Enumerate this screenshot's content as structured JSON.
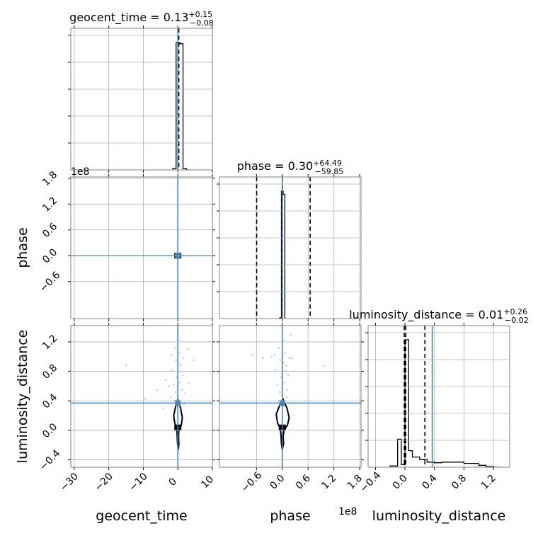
{
  "chart_data": {
    "type": "corner",
    "params": [
      "geocent_time",
      "phase",
      "luminosity_distance"
    ],
    "axis_labels": {
      "geocent_time": "geocent_time",
      "phase": "phase",
      "luminosity_distance": "luminosity_distance"
    },
    "ranges": {
      "geocent_time": [
        -31,
        10
      ],
      "phase": [
        -146000000.0,
        183000000.0
      ],
      "luminosity_distance": [
        -0.5,
        1.42
      ]
    },
    "ticks": {
      "geocent_time": [
        -30,
        -20,
        -10,
        0,
        10
      ],
      "phase": [
        -0.6,
        0.0,
        0.6,
        1.2,
        1.8
      ],
      "phase_y": [
        -0.6,
        0.0,
        0.6,
        1.2,
        1.8
      ],
      "luminosity_distance": [
        -0.4,
        0.0,
        0.4,
        0.8,
        1.2
      ]
    },
    "tick_labels": {
      "geocent_time": [
        "−30",
        "−20",
        "−10",
        "0",
        "10"
      ],
      "phase": [
        "−0.6",
        "0.0",
        "0.6",
        "1.2",
        "1.8"
      ],
      "phase_y": [
        "−0.6",
        "0.0",
        "0.6",
        "1.2",
        "1.8"
      ],
      "luminosity_distance": [
        "−0.4",
        "0.0",
        "0.4",
        "0.8",
        "1.2"
      ]
    },
    "offset_text": {
      "phase_x": "1e8",
      "phase_y": "1e8"
    },
    "titles": {
      "geocent_time": {
        "name": "geocent_time",
        "median": "0.13",
        "upper": "+0.15",
        "lower": "−0.08"
      },
      "phase": {
        "name": "phase",
        "median": "0.30",
        "upper": "+64.49",
        "lower": "−59.85"
      },
      "luminosity_distance": {
        "name": "luminosity_distance",
        "median": "0.01",
        "upper": "+0.26",
        "lower": "−0.02"
      }
    },
    "quantiles": {
      "geocent_time": [
        0.05,
        0.13,
        0.28
      ],
      "phase": [
        -59.55,
        0.3,
        64.79
      ],
      "luminosity_distance": [
        -0.01,
        0.01,
        0.27
      ]
    },
    "truths": {
      "geocent_time": 0.0,
      "phase": 0.0,
      "luminosity_distance": 0.37
    },
    "hist_1d": {
      "geocent_time": {
        "edges": [
          -1.5,
          -0.5,
          0.5,
          1.5,
          2.5,
          3.5
        ],
        "counts": [
          0.01,
          0.98,
          0.97,
          0.01,
          0.0
        ]
      },
      "phase": {
        "edges": [
          -6000000.0,
          -2000000.0,
          2000000.0,
          6000000.0
        ],
        "counts": [
          0.005,
          0.985,
          0.96
        ]
      },
      "luminosity_distance": {
        "edges": [
          -0.2,
          -0.1,
          -0.05,
          0.0,
          0.05,
          0.1,
          0.2,
          0.3,
          0.4,
          0.5,
          0.6,
          0.8,
          1.0,
          1.1,
          1.2,
          1.3
        ],
        "counts": [
          0.01,
          0.22,
          0.02,
          1.0,
          0.13,
          0.08,
          0.06,
          0.04,
          0.035,
          0.04,
          0.04,
          0.03,
          0.015,
          0.005,
          0.0
        ]
      }
    },
    "contours": {
      "geocent_time__luminosity_distance": [
        [
          -0.4,
          0.03
        ],
        [
          -0.9,
          0.1
        ],
        [
          -1.2,
          0.2
        ],
        [
          -0.4,
          0.37
        ],
        [
          0.0,
          0.42
        ],
        [
          0.8,
          0.3
        ],
        [
          1.3,
          0.17
        ],
        [
          1.0,
          0.07
        ],
        [
          0.3,
          0.0
        ],
        [
          0.2,
          -0.08
        ],
        [
          0.3,
          -0.18
        ],
        [
          0.15,
          -0.26
        ],
        [
          -0.1,
          -0.18
        ],
        [
          -0.2,
          -0.06
        ],
        [
          -0.4,
          0.03
        ]
      ],
      "phase__luminosity_distance": [
        [
          -5000000.0,
          0.03
        ],
        [
          -11000000.0,
          0.1
        ],
        [
          -14000000.0,
          0.22
        ],
        [
          -4000000.0,
          0.37
        ],
        [
          2000000.0,
          0.42
        ],
        [
          11000000.0,
          0.3
        ],
        [
          16000000.0,
          0.17
        ],
        [
          12000000.0,
          0.07
        ],
        [
          4000000.0,
          0.0
        ],
        [
          2000000.0,
          -0.08
        ],
        [
          3000000.0,
          -0.18
        ],
        [
          0.0,
          -0.26
        ],
        [
          -2000000.0,
          -0.18
        ],
        [
          -3000000.0,
          -0.06
        ],
        [
          -5000000.0,
          0.03
        ]
      ]
    },
    "scatter": {
      "geocent_time__luminosity_distance": [
        [
          -0.5,
          0.95
        ],
        [
          0.6,
          1.05
        ],
        [
          -1.2,
          0.62
        ],
        [
          1.4,
          0.75
        ],
        [
          -2.1,
          0.45
        ],
        [
          0.2,
          1.22
        ],
        [
          -0.3,
          0.72
        ],
        [
          1.1,
          0.55
        ],
        [
          -1.6,
          0.82
        ],
        [
          2.2,
          0.5
        ],
        [
          -0.8,
          1.12
        ],
        [
          0.9,
          0.88
        ],
        [
          -3.5,
          0.68
        ],
        [
          3.1,
          0.64
        ],
        [
          -6.0,
          0.55
        ],
        [
          -9.5,
          0.43
        ],
        [
          -15.0,
          0.88
        ],
        [
          4.5,
          0.95
        ],
        [
          -0.1,
          1.32
        ],
        [
          0.5,
          0.65
        ],
        [
          -1.0,
          0.4
        ],
        [
          1.6,
          0.98
        ],
        [
          -2.5,
          0.6
        ],
        [
          0.7,
          0.8
        ],
        [
          -4.2,
          0.3
        ],
        [
          2.8,
          1.1
        ],
        [
          -0.6,
          0.52
        ],
        [
          1.9,
          0.35
        ],
        [
          -1.8,
          1.02
        ],
        [
          0.3,
          0.92
        ]
      ],
      "geocent_time__phase": [
        [
          -1.0,
          0.0
        ],
        [
          1.5,
          0.0
        ],
        [
          -2.5,
          0.0
        ],
        [
          2.0,
          0.0
        ],
        [
          -3.5,
          0.0
        ],
        [
          0.8,
          0.0
        ],
        [
          -0.6,
          0.0
        ],
        [
          3.0,
          0.0
        ]
      ],
      "phase__luminosity_distance": [
        [
          -5000000.0,
          0.95
        ],
        [
          6000000.0,
          1.05
        ],
        [
          -12000000.0,
          0.62
        ],
        [
          14000000.0,
          0.75
        ],
        [
          10000000.0,
          0.45
        ],
        [
          2000000.0,
          1.22
        ],
        [
          -3000000.0,
          0.72
        ],
        [
          11000000.0,
          0.55
        ],
        [
          -16000000.0,
          0.82
        ],
        [
          22000000.0,
          0.98
        ],
        [
          -8000000.0,
          1.12
        ],
        [
          9000000.0,
          0.88
        ],
        [
          -69000000.0,
          1.02
        ],
        [
          -45000000.0,
          0.98
        ],
        [
          98000000.0,
          0.87
        ],
        [
          -10000000.0,
          0.4
        ],
        [
          16000000.0,
          0.98
        ],
        [
          -25000000.0,
          1.0
        ],
        [
          7000000.0,
          0.8
        ],
        [
          5000000.0,
          0.65
        ],
        [
          -6000000.0,
          0.52
        ],
        [
          19000000.0,
          1.3
        ],
        [
          -18000000.0,
          1.02
        ],
        [
          3000000.0,
          0.92
        ]
      ]
    },
    "dense_core": {
      "geocent_time__luminosity_distance": [
        0.0,
        0.04
      ],
      "phase__luminosity_distance": [
        0.0,
        0.04
      ]
    },
    "colors": {
      "truth": "#4682b4",
      "hist": "#000000",
      "scatter": "#808080",
      "grid": "#b0b0b0"
    },
    "grid": true
  }
}
